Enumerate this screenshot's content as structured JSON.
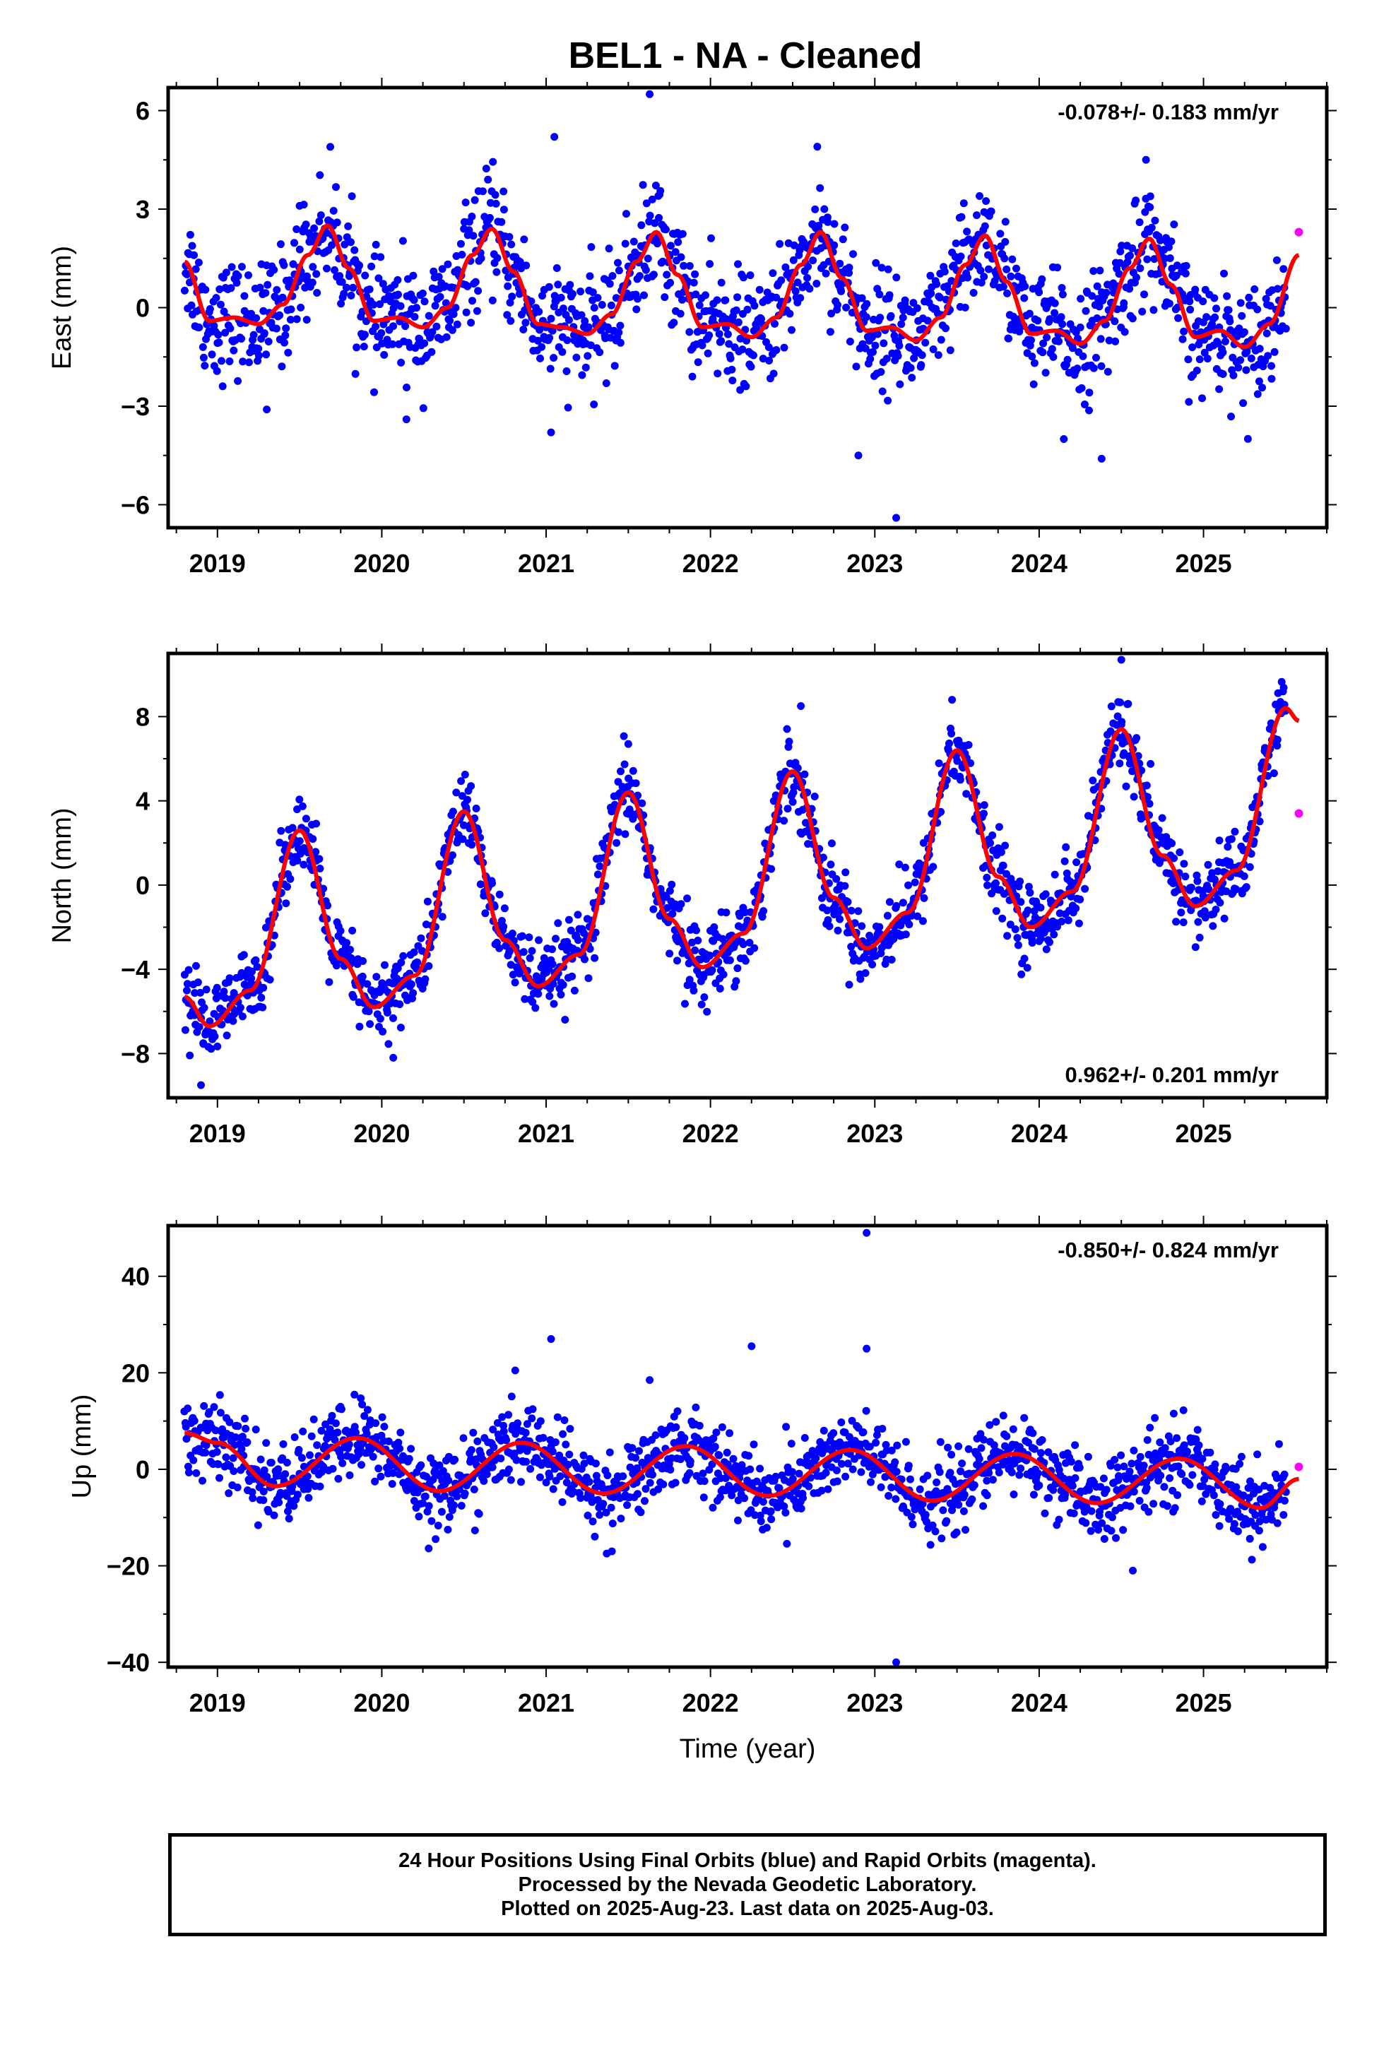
{
  "title": "BEL1  - NA - Cleaned",
  "footer": {
    "line1": "24 Hour Positions Using Final Orbits (blue) and Rapid Orbits (magenta).",
    "line2": "Processed by the Nevada Geodetic Laboratory.",
    "line3": "Plotted on 2025-Aug-23. Last data on 2025-Aug-03."
  },
  "colors": {
    "final": "#0000ff",
    "rapid": "#ff00ff",
    "model": "#ff0000"
  },
  "chart_data": [
    {
      "type": "scatter",
      "name": "east",
      "ylabel": "East (mm)",
      "xlabel": "",
      "rate_label": "-0.078+/- 0.183 mm/yr",
      "rate_position": "top-right",
      "xlim": [
        2018.7,
        2025.75
      ],
      "ylim": [
        -6.7,
        6.7
      ],
      "xticks": [
        2019,
        2020,
        2021,
        2022,
        2023,
        2024,
        2025
      ],
      "yticks": [
        -6,
        -3,
        0,
        3,
        6
      ],
      "ytick_labels": [
        "−6",
        "−3",
        "0",
        "3",
        "6"
      ],
      "data_start": 2018.8,
      "data_end": 2025.5,
      "model": {
        "x": [
          2018.8,
          2018.95,
          2019.1,
          2019.25,
          2019.4,
          2019.55,
          2019.67,
          2019.8,
          2019.95,
          2020.1,
          2020.25,
          2020.4,
          2020.55,
          2020.67,
          2020.8,
          2020.95,
          2021.1,
          2021.25,
          2021.4,
          2021.55,
          2021.67,
          2021.8,
          2021.95,
          2022.1,
          2022.25,
          2022.4,
          2022.55,
          2022.67,
          2022.8,
          2022.95,
          2023.1,
          2023.25,
          2023.4,
          2023.55,
          2023.67,
          2023.8,
          2023.95,
          2024.1,
          2024.25,
          2024.4,
          2024.55,
          2024.67,
          2024.8,
          2024.95,
          2025.1,
          2025.25,
          2025.4,
          2025.58
        ],
        "y": [
          1.4,
          -0.4,
          -0.3,
          -0.5,
          0.1,
          1.6,
          2.5,
          1.2,
          -0.4,
          -0.3,
          -0.6,
          0.0,
          1.6,
          2.4,
          1.1,
          -0.5,
          -0.6,
          -0.8,
          -0.2,
          1.4,
          2.3,
          1.0,
          -0.6,
          -0.5,
          -0.9,
          -0.3,
          1.3,
          2.3,
          0.9,
          -0.7,
          -0.6,
          -1.0,
          -0.3,
          1.3,
          2.2,
          0.8,
          -0.8,
          -0.7,
          -1.1,
          -0.4,
          1.2,
          2.1,
          0.7,
          -0.9,
          -0.7,
          -1.2,
          -0.5,
          1.6
        ]
      },
      "noise": 0.85,
      "outliers": [
        {
          "x": 2019.3,
          "y": -3.1
        },
        {
          "x": 2019.5,
          "y": 3.1
        },
        {
          "x": 2020.15,
          "y": -3.4
        },
        {
          "x": 2021.03,
          "y": -3.8
        },
        {
          "x": 2021.05,
          "y": 5.2
        },
        {
          "x": 2021.63,
          "y": 6.5
        },
        {
          "x": 2022.9,
          "y": -4.5
        },
        {
          "x": 2023.13,
          "y": -6.4
        },
        {
          "x": 2024.15,
          "y": -4.0
        },
        {
          "x": 2024.38,
          "y": -4.6
        },
        {
          "x": 2024.65,
          "y": 4.5
        },
        {
          "x": 2022.65,
          "y": 4.9
        }
      ],
      "rapid": [
        {
          "x": 2025.58,
          "y": 2.3
        }
      ]
    },
    {
      "type": "scatter",
      "name": "north",
      "ylabel": "North (mm)",
      "xlabel": "",
      "rate_label": "0.962+/- 0.201 mm/yr",
      "rate_position": "bottom-right",
      "xlim": [
        2018.7,
        2025.75
      ],
      "ylim": [
        -10.1,
        11.0
      ],
      "xticks": [
        2019,
        2020,
        2021,
        2022,
        2023,
        2024,
        2025
      ],
      "yticks": [
        -8,
        -4,
        0,
        4,
        8
      ],
      "ytick_labels": [
        "−8",
        "−4",
        "0",
        "4",
        "8"
      ],
      "data_start": 2018.8,
      "data_end": 2025.5,
      "model": {
        "x": [
          2018.8,
          2018.95,
          2019.2,
          2019.5,
          2019.75,
          2019.95,
          2020.2,
          2020.5,
          2020.75,
          2020.95,
          2021.2,
          2021.5,
          2021.75,
          2021.95,
          2022.2,
          2022.5,
          2022.75,
          2022.95,
          2023.2,
          2023.5,
          2023.75,
          2023.95,
          2024.2,
          2024.5,
          2024.75,
          2024.95,
          2025.2,
          2025.5,
          2025.58
        ],
        "y": [
          -5.3,
          -6.7,
          -5.0,
          2.6,
          -3.5,
          -5.8,
          -4.3,
          3.5,
          -2.6,
          -4.8,
          -3.3,
          4.4,
          -1.6,
          -3.9,
          -2.3,
          5.4,
          -0.6,
          -3.0,
          -1.3,
          6.4,
          0.4,
          -2.0,
          -0.3,
          7.4,
          1.4,
          -1.0,
          0.7,
          8.4,
          7.8
        ]
      },
      "noise": 0.9,
      "outliers": [
        {
          "x": 2018.9,
          "y": -9.5
        },
        {
          "x": 2020.07,
          "y": -8.2
        },
        {
          "x": 2024.5,
          "y": 10.7
        },
        {
          "x": 2022.55,
          "y": 8.5
        },
        {
          "x": 2023.47,
          "y": 8.8
        },
        {
          "x": 2021.5,
          "y": 6.7
        }
      ],
      "rapid": [
        {
          "x": 2025.58,
          "y": 3.4
        }
      ]
    },
    {
      "type": "scatter",
      "name": "up",
      "ylabel": "Up (mm)",
      "xlabel": "Time (year)",
      "rate_label": "-0.850+/- 0.824 mm/yr",
      "rate_position": "top-right",
      "xlim": [
        2018.7,
        2025.75
      ],
      "ylim": [
        -41.0,
        50.5
      ],
      "xticks": [
        2019,
        2020,
        2021,
        2022,
        2023,
        2024,
        2025
      ],
      "yticks": [
        -40,
        -20,
        0,
        20,
        40
      ],
      "ytick_labels": [
        "−40",
        "−20",
        "0",
        "20",
        "40"
      ],
      "data_start": 2018.8,
      "data_end": 2025.5,
      "model": {
        "x": [
          2018.8,
          2019.0,
          2019.35,
          2019.85,
          2020.35,
          2020.85,
          2021.35,
          2021.85,
          2022.35,
          2022.85,
          2023.35,
          2023.85,
          2024.35,
          2024.85,
          2025.35,
          2025.58
        ],
        "y": [
          7.5,
          5.5,
          -3.5,
          6.5,
          -4.5,
          5.5,
          -5.0,
          4.8,
          -5.5,
          4.0,
          -6.5,
          3.2,
          -7.0,
          2.2,
          -8.0,
          -2.0
        ]
      },
      "noise": 4.0,
      "outliers": [
        {
          "x": 2021.03,
          "y": 27
        },
        {
          "x": 2022.25,
          "y": 25.5
        },
        {
          "x": 2022.95,
          "y": 49
        },
        {
          "x": 2022.95,
          "y": 25
        },
        {
          "x": 2023.13,
          "y": -40
        },
        {
          "x": 2024.57,
          "y": -21
        },
        {
          "x": 2021.4,
          "y": -17
        },
        {
          "x": 2021.63,
          "y": 18.5
        }
      ],
      "rapid": [
        {
          "x": 2025.58,
          "y": 0.5
        }
      ]
    }
  ]
}
